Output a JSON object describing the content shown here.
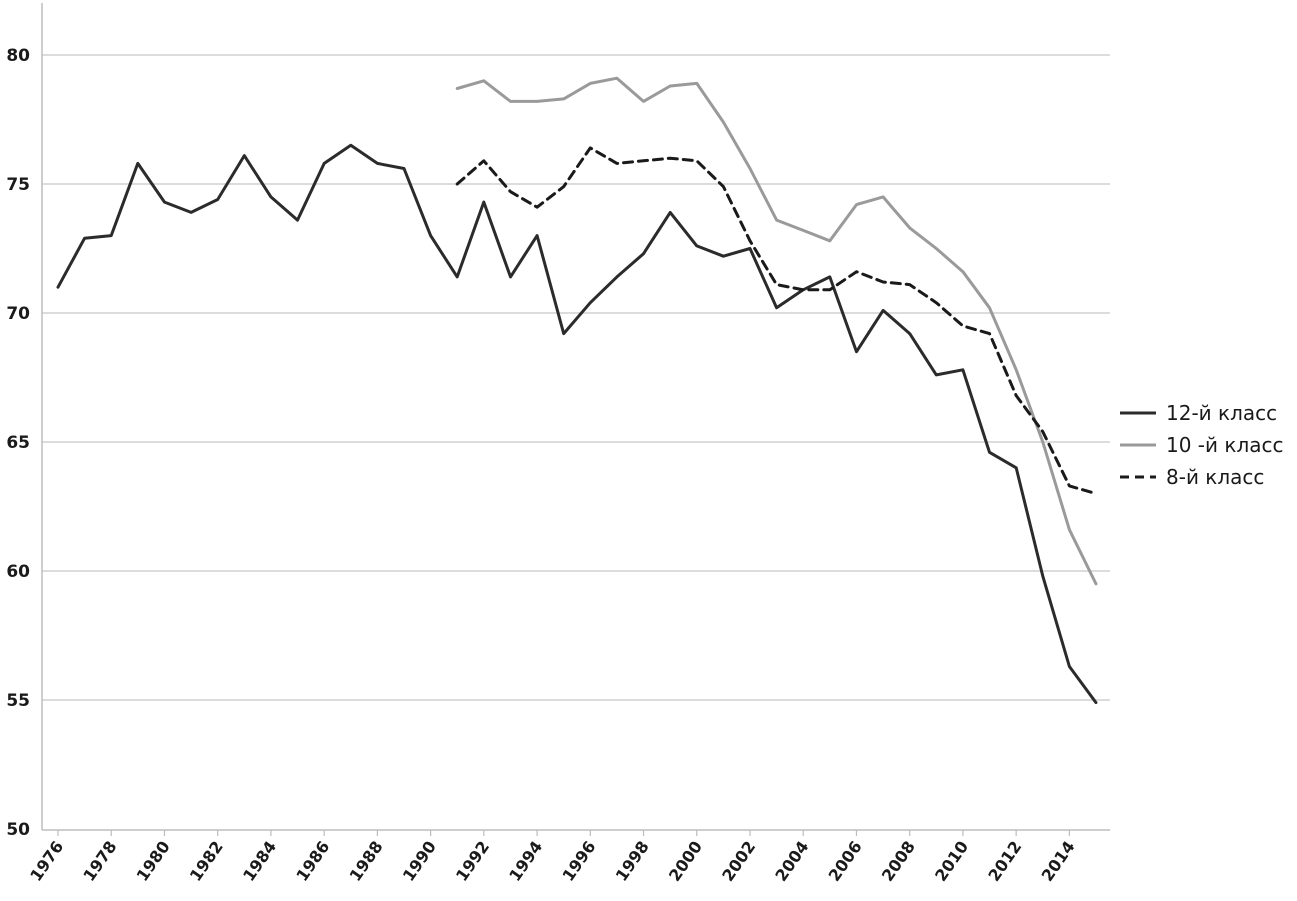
{
  "chart_data": {
    "type": "line",
    "title": "",
    "xlabel": "",
    "ylabel": "",
    "xlim": [
      1976,
      2015
    ],
    "ylim": [
      50,
      80
    ],
    "grid": "horizontal",
    "legend_position": "right",
    "y_ticks": [
      50,
      55,
      60,
      65,
      70,
      75,
      80
    ],
    "x_tick_labels": [
      "1976",
      "1978",
      "1980",
      "1982",
      "1984",
      "1986",
      "1988",
      "1990",
      "1992",
      "1994",
      "1996",
      "1998",
      "2000",
      "2002",
      "2004",
      "2006",
      "2008",
      "2010",
      "2012",
      "2014"
    ],
    "series": [
      {
        "name": "12-й класс",
        "color": "#2b2b2b",
        "style": "solid",
        "x": [
          1976,
          1977,
          1978,
          1979,
          1980,
          1981,
          1982,
          1983,
          1984,
          1985,
          1986,
          1987,
          1988,
          1989,
          1990,
          1991,
          1992,
          1993,
          1994,
          1995,
          1996,
          1997,
          1998,
          1999,
          2000,
          2001,
          2002,
          2003,
          2004,
          2005,
          2006,
          2007,
          2008,
          2009,
          2010,
          2011,
          2012,
          2013,
          2014,
          2015
        ],
        "y": [
          71.0,
          72.9,
          73.0,
          75.8,
          74.3,
          73.9,
          74.4,
          76.1,
          74.5,
          73.6,
          75.8,
          76.5,
          75.8,
          75.6,
          73.0,
          71.4,
          74.3,
          71.4,
          73.0,
          69.2,
          70.4,
          71.4,
          72.3,
          73.9,
          72.6,
          72.2,
          72.5,
          70.2,
          70.9,
          71.4,
          68.5,
          70.1,
          69.2,
          67.6,
          67.8,
          64.6,
          64.0,
          59.8,
          56.3,
          54.9
        ]
      },
      {
        "name": "10 -й класс",
        "color": "#9a9a9a",
        "style": "solid",
        "x": [
          1991,
          1992,
          1993,
          1994,
          1995,
          1996,
          1997,
          1998,
          1999,
          2000,
          2001,
          2002,
          2003,
          2004,
          2005,
          2006,
          2007,
          2008,
          2009,
          2010,
          2011,
          2012,
          2013,
          2014,
          2015
        ],
        "y": [
          78.7,
          79.0,
          78.2,
          78.2,
          78.3,
          78.9,
          79.1,
          78.2,
          78.8,
          78.9,
          77.4,
          75.6,
          73.6,
          73.2,
          72.8,
          74.2,
          74.5,
          73.3,
          72.5,
          71.6,
          70.2,
          67.8,
          65.0,
          61.6,
          59.5
        ]
      },
      {
        "name": "8-й класс",
        "color": "#1a1a1a",
        "style": "dashed",
        "x": [
          1991,
          1992,
          1993,
          1994,
          1995,
          1996,
          1997,
          1998,
          1999,
          2000,
          2001,
          2002,
          2003,
          2004,
          2005,
          2006,
          2007,
          2008,
          2009,
          2010,
          2011,
          2012,
          2013,
          2014,
          2015
        ],
        "y": [
          75.0,
          75.9,
          74.7,
          74.1,
          74.9,
          76.4,
          75.8,
          75.9,
          76.0,
          75.9,
          74.9,
          72.8,
          71.1,
          70.9,
          70.9,
          71.6,
          71.2,
          71.1,
          70.4,
          69.5,
          69.2,
          66.8,
          65.4,
          63.3,
          63.0
        ]
      }
    ]
  }
}
